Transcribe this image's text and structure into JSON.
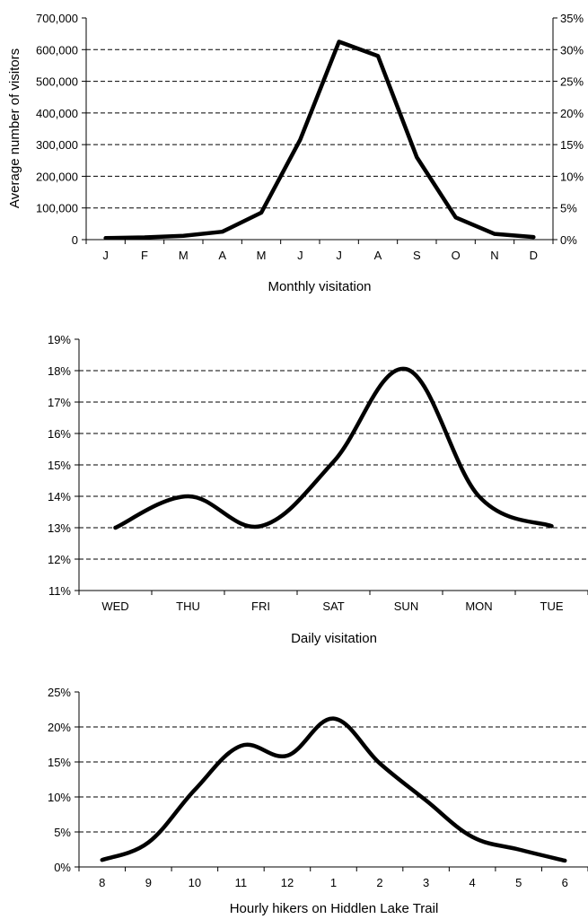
{
  "chart_data": [
    {
      "type": "line",
      "title": "",
      "xlabel": "Monthly visitation",
      "ylabel": "Average number of visitors",
      "categories": [
        "J",
        "F",
        "M",
        "A",
        "M",
        "J",
        "J",
        "A",
        "S",
        "O",
        "N",
        "D"
      ],
      "series": [
        {
          "values": [
            5000,
            7000,
            12000,
            25000,
            85000,
            315000,
            625000,
            580000,
            260000,
            70000,
            18000,
            8000
          ]
        }
      ],
      "ylim": [
        0,
        700000
      ],
      "y_ticks": [
        "0",
        "100,000",
        "200,000",
        "300,000",
        "400,000",
        "500,000",
        "600,000",
        "700,000"
      ],
      "y2lim": [
        0,
        35
      ],
      "y2_ticks": [
        "0%",
        "5%",
        "10%",
        "15%",
        "20%",
        "25%",
        "30%",
        "35%"
      ],
      "grid": "horizontal dashed",
      "smooth": false
    },
    {
      "type": "line",
      "title": "",
      "xlabel": "Daily visitation",
      "ylabel": "",
      "categories": [
        "WED",
        "THU",
        "FRI",
        "SAT",
        "SUN",
        "MON",
        "TUE"
      ],
      "series": [
        {
          "values": [
            13.0,
            14.0,
            13.05,
            15.1,
            18.05,
            14.0,
            13.05
          ]
        }
      ],
      "ylim": [
        11,
        19
      ],
      "y_ticks": [
        "11%",
        "12%",
        "13%",
        "14%",
        "15%",
        "16%",
        "17%",
        "18%",
        "19%"
      ],
      "grid": "horizontal dashed",
      "smooth": true
    },
    {
      "type": "line",
      "title": "",
      "xlabel": "Hourly hikers on Hiddlen Lake Trail",
      "ylabel": "",
      "categories": [
        "8",
        "9",
        "10",
        "11",
        "12",
        "1",
        "2",
        "3",
        "4",
        "5",
        "6"
      ],
      "series": [
        {
          "values": [
            1.0,
            3.5,
            11.0,
            17.3,
            15.9,
            21.2,
            14.8,
            9.5,
            4.3,
            2.5,
            0.9
          ]
        }
      ],
      "ylim": [
        0,
        25
      ],
      "y_ticks": [
        "0%",
        "5%",
        "10%",
        "15%",
        "20%",
        "25%"
      ],
      "grid": "horizontal dashed",
      "smooth": true
    }
  ]
}
